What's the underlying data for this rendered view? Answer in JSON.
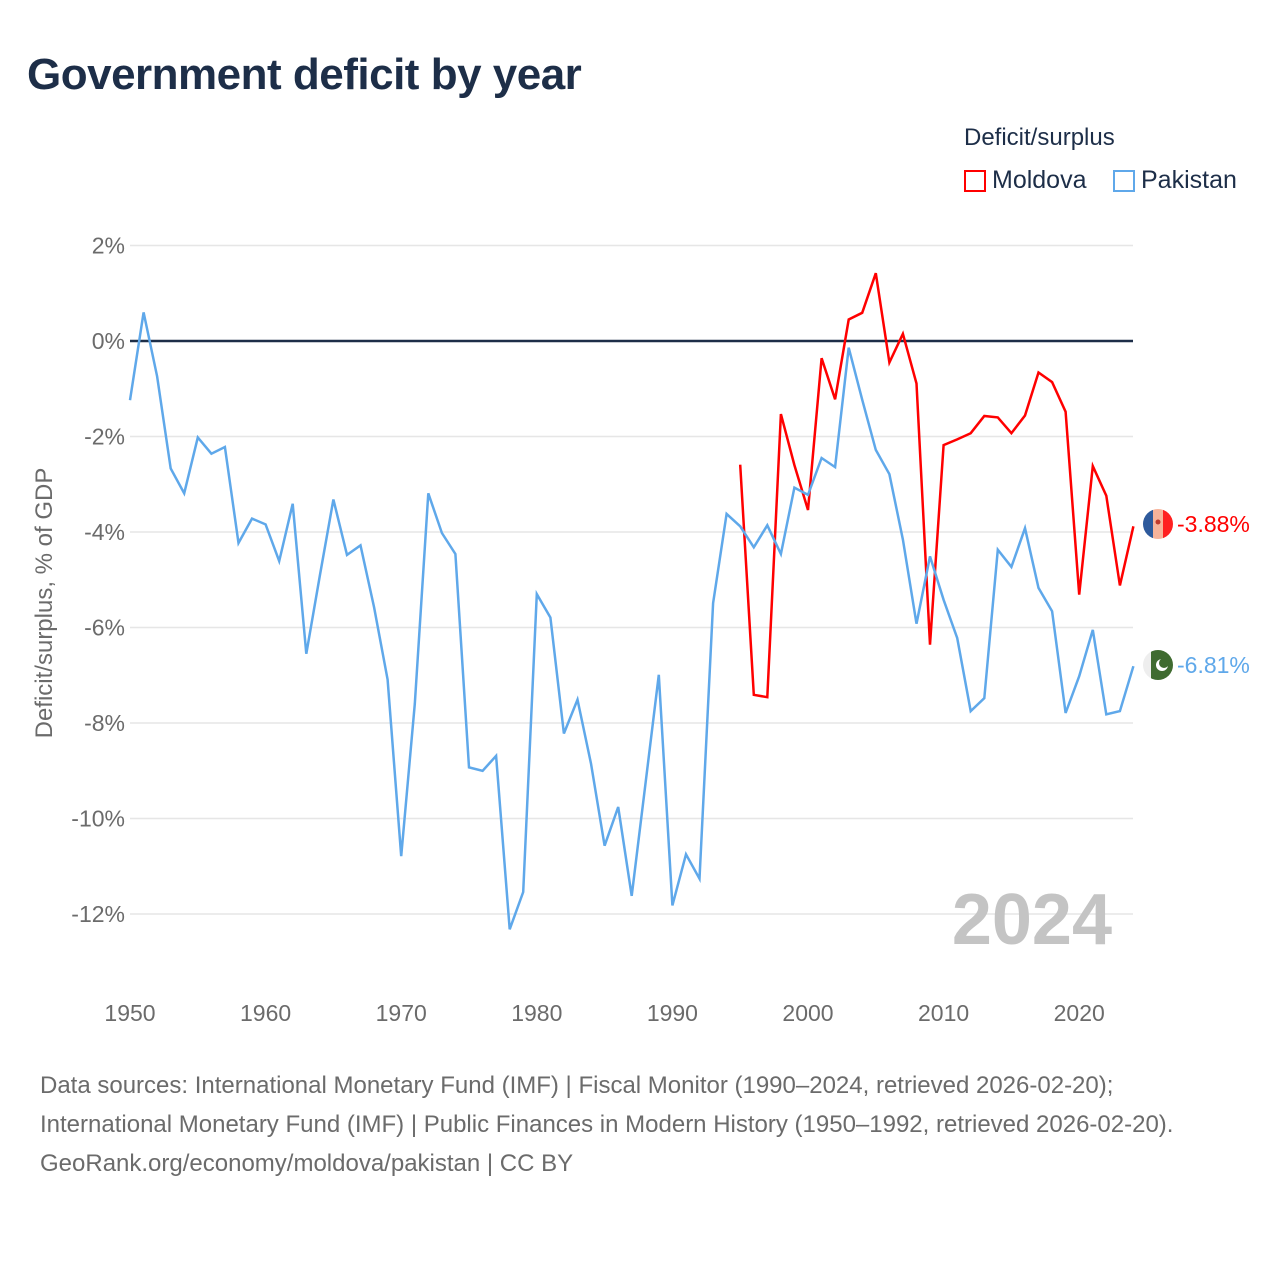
{
  "title": "Government deficit by year",
  "legend": {
    "title": "Deficit/surplus",
    "items": [
      {
        "label": "Moldova",
        "color": "#ff0000"
      },
      {
        "label": "Pakistan",
        "color": "#5fa8ea"
      }
    ]
  },
  "end_labels": {
    "moldova": "-3.88%",
    "pakistan": "-6.81%"
  },
  "year_watermark": "2024",
  "footer": {
    "sources": "Data sources: International Monetary Fund (IMF) | Fiscal Monitor (1990–2024, retrieved 2026-02-20); International Monetary Fund (IMF) | Public Finances in Modern History (1950–1992, retrieved 2026-02-20).",
    "credit": "GeoRank.org/economy/moldova/pakistan | CC BY"
  },
  "chart_data": {
    "type": "line",
    "title": "Government deficit by year",
    "xlabel": "",
    "ylabel": "Deficit/surplus, % of GDP",
    "xlim": [
      1950,
      2024
    ],
    "ylim": [
      -13,
      2.5
    ],
    "xticks": [
      1950,
      1960,
      1970,
      1980,
      1990,
      2000,
      2010,
      2020
    ],
    "yticks": [
      {
        "v": 2,
        "label": "2%"
      },
      {
        "v": 0,
        "label": "0%"
      },
      {
        "v": -2,
        "label": "-2%"
      },
      {
        "v": -4,
        "label": "-4%"
      },
      {
        "v": -6,
        "label": "-6%"
      },
      {
        "v": -8,
        "label": "-8%"
      },
      {
        "v": -10,
        "label": "-10%"
      },
      {
        "v": -12,
        "label": "-12%"
      }
    ],
    "grid": true,
    "legend_position": "top-right",
    "series": [
      {
        "name": "Moldova",
        "color": "#ff0000",
        "start_year": 1995,
        "values": [
          -2.59,
          -7.41,
          -7.46,
          -1.53,
          -2.6,
          -3.54,
          -0.36,
          -1.22,
          0.45,
          0.59,
          1.42,
          -0.45,
          0.15,
          -0.89,
          -6.36,
          -2.18,
          -2.06,
          -1.93,
          -1.57,
          -1.6,
          -1.93,
          -1.56,
          -0.66,
          -0.86,
          -1.48,
          -5.31,
          -2.62,
          -3.24,
          -5.12,
          -3.88
        ]
      },
      {
        "name": "Pakistan",
        "color": "#5fa8ea",
        "start_year": 1950,
        "values": [
          -1.24,
          0.6,
          -0.74,
          -2.67,
          -3.19,
          -2.02,
          -2.36,
          -2.22,
          -4.23,
          -3.72,
          -3.84,
          -4.61,
          -3.41,
          -6.55,
          -4.92,
          -3.32,
          -4.48,
          -4.28,
          -5.58,
          -7.09,
          -10.79,
          -7.6,
          -3.19,
          -4.02,
          -4.46,
          -8.93,
          -9.0,
          -8.69,
          -12.32,
          -11.54,
          -5.3,
          -5.79,
          -8.22,
          -7.51,
          -8.85,
          -10.57,
          -9.76,
          -11.62,
          -9.3,
          -6.99,
          -11.82,
          -10.75,
          -11.26,
          -5.49,
          -3.62,
          -3.88,
          -4.32,
          -3.86,
          -4.46,
          -3.07,
          -3.22,
          -2.45,
          -2.64,
          -0.14,
          -1.23,
          -2.28,
          -2.79,
          -4.16,
          -5.92,
          -4.51,
          -5.42,
          -6.22,
          -7.75,
          -7.48,
          -4.37,
          -4.73,
          -3.92,
          -5.17,
          -5.66,
          -7.79,
          -7.02,
          -6.05,
          -7.82,
          -7.75,
          -6.81
        ]
      }
    ]
  }
}
